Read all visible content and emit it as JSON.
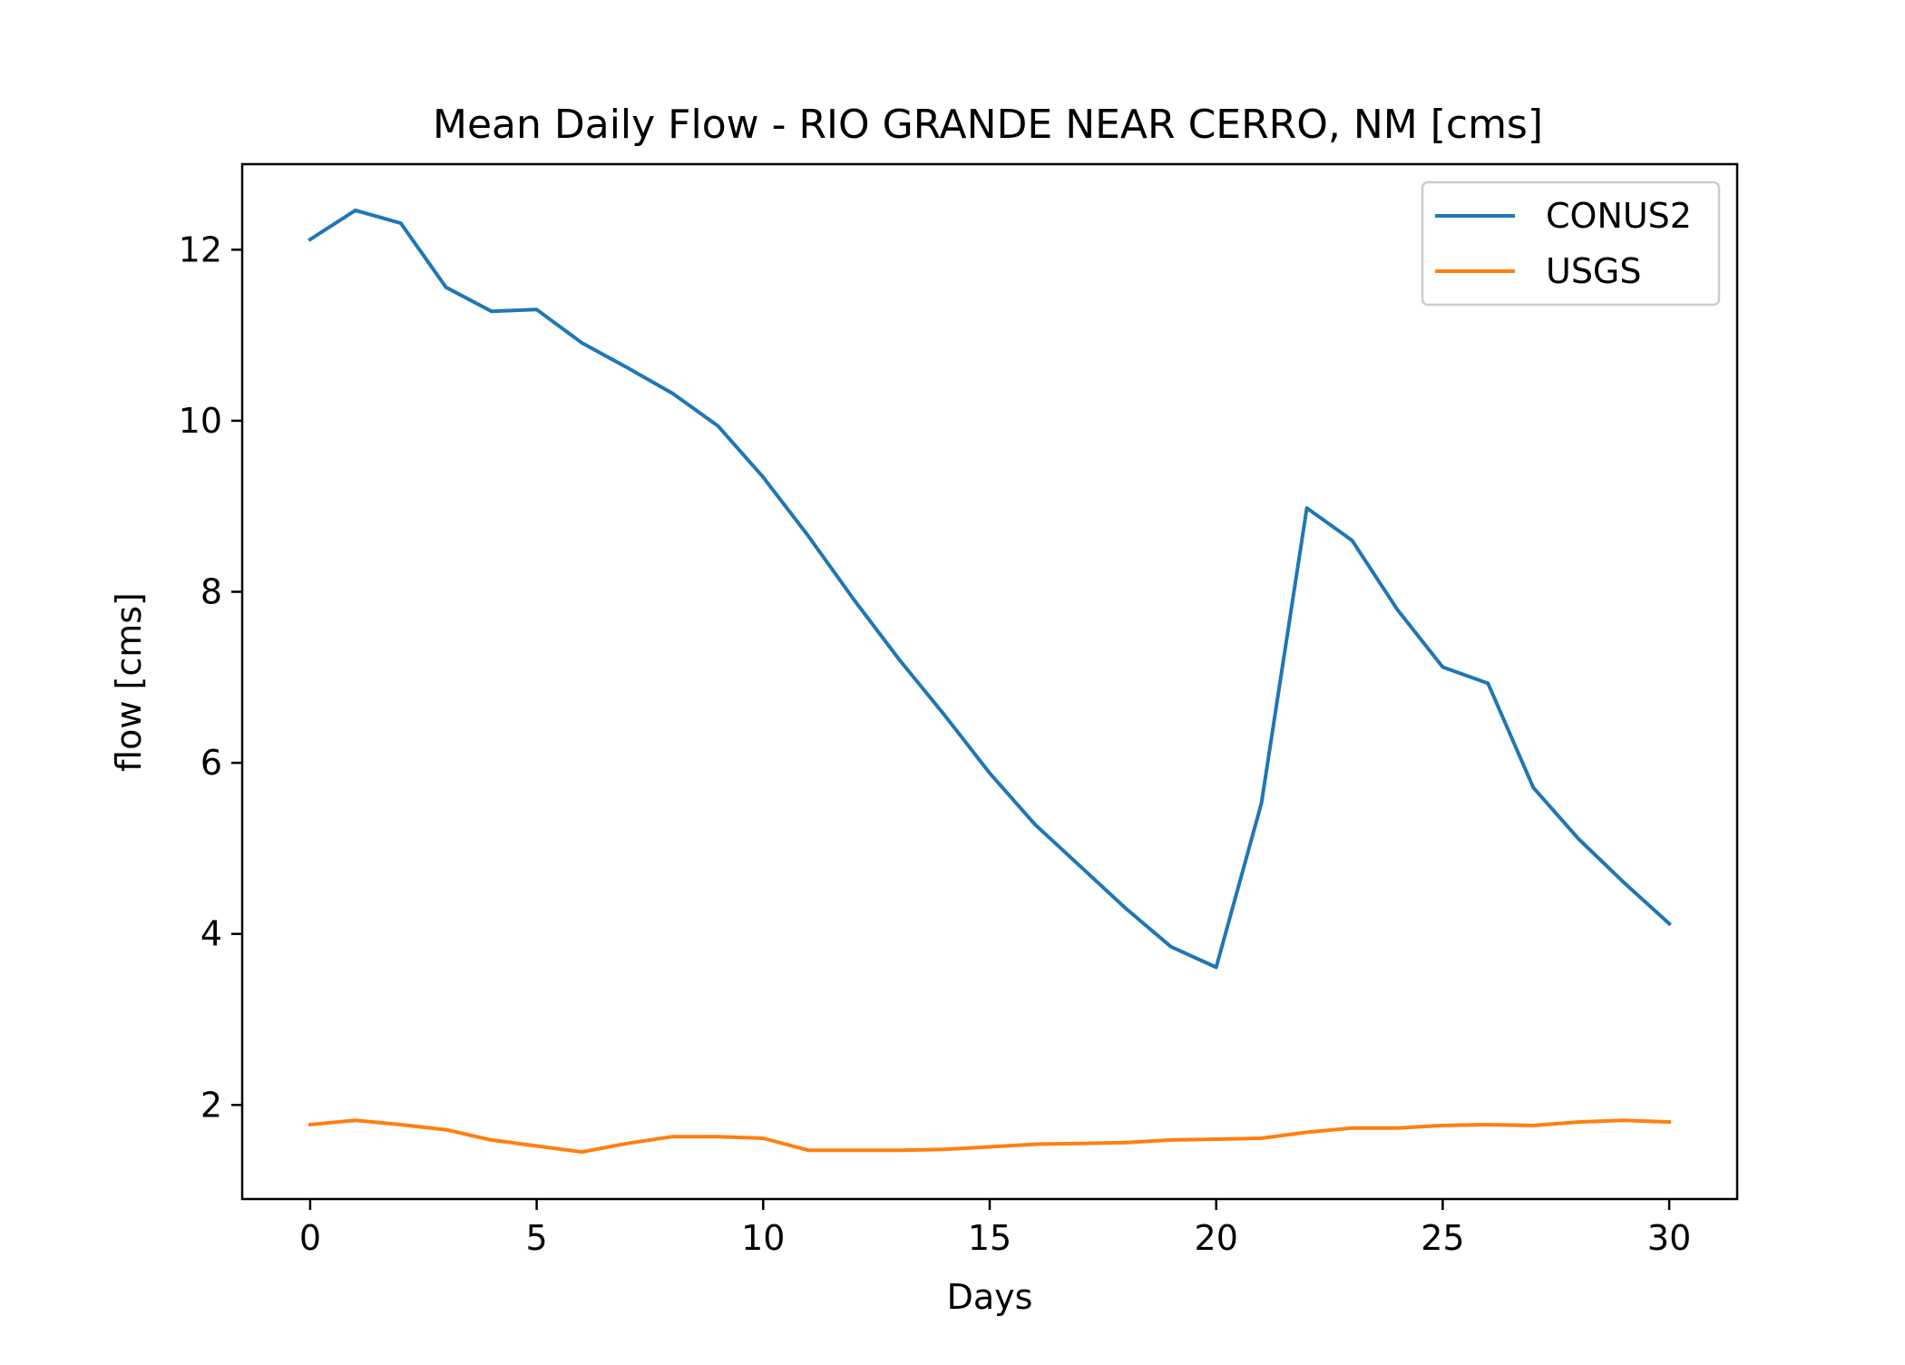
{
  "chart_data": {
    "type": "line",
    "title": "Mean Daily Flow - RIO GRANDE NEAR CERRO, NM [cms]",
    "xlabel": "Days",
    "ylabel": "flow [cms]",
    "xlim": [
      -1.5,
      31.5
    ],
    "ylim": [
      0.9,
      13.0
    ],
    "xticks": [
      0,
      5,
      10,
      15,
      20,
      25,
      30
    ],
    "yticks": [
      2,
      4,
      6,
      8,
      10,
      12
    ],
    "grid": false,
    "legend": "top-right",
    "x": [
      0,
      1,
      2,
      3,
      4,
      5,
      6,
      7,
      8,
      9,
      10,
      11,
      12,
      13,
      14,
      15,
      16,
      17,
      18,
      19,
      20,
      21,
      22,
      23,
      24,
      25,
      26,
      27,
      28,
      29,
      30
    ],
    "series": [
      {
        "name": "CONUS2",
        "color": "#1f77b4",
        "values": [
          12.12,
          12.46,
          12.31,
          11.56,
          11.28,
          11.3,
          10.91,
          10.62,
          10.32,
          9.94,
          9.34,
          8.65,
          7.91,
          7.21,
          6.56,
          5.88,
          5.28,
          4.79,
          4.3,
          3.85,
          3.61,
          5.53,
          8.98,
          8.6,
          7.79,
          7.12,
          6.93,
          5.71,
          5.11,
          4.6,
          4.12
        ]
      },
      {
        "name": "USGS",
        "color": "#ff7f0e",
        "values": [
          1.77,
          1.82,
          1.77,
          1.71,
          1.59,
          1.52,
          1.45,
          1.55,
          1.63,
          1.63,
          1.61,
          1.47,
          1.47,
          1.47,
          1.48,
          1.51,
          1.54,
          1.55,
          1.56,
          1.59,
          1.6,
          1.61,
          1.68,
          1.73,
          1.73,
          1.76,
          1.77,
          1.76,
          1.8,
          1.82,
          1.8
        ]
      }
    ]
  }
}
